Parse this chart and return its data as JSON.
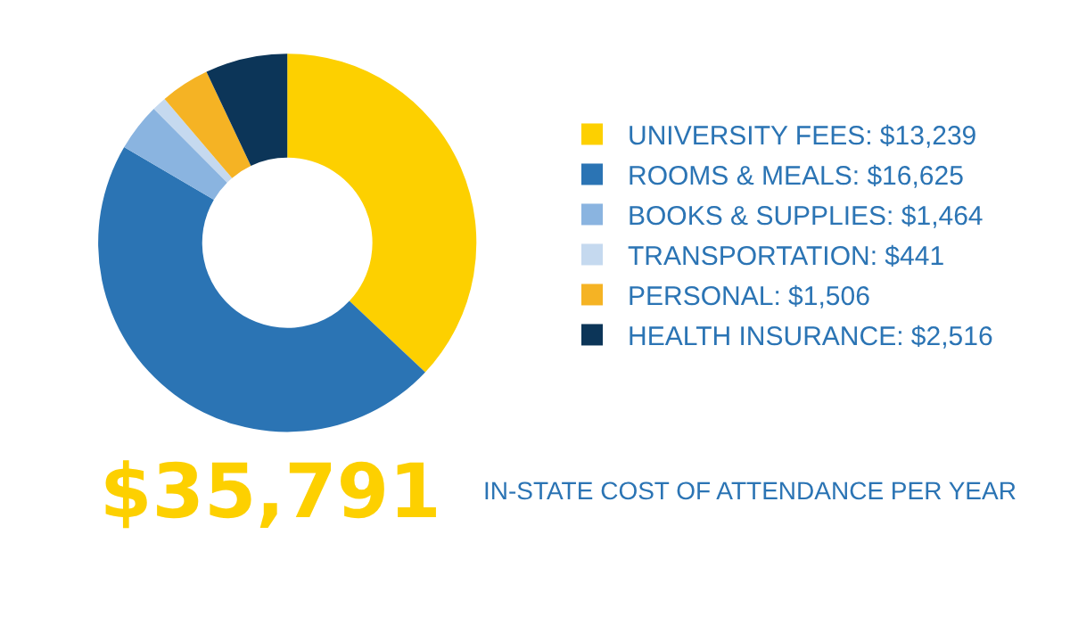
{
  "chart_data": {
    "type": "donut",
    "categories": [
      "UNIVERSITY FEES: $13,239",
      "ROOMS & MEALS: $16,625",
      "BOOKS & SUPPLIES: $1,464",
      "TRANSPORTATION: $441",
      "PERSONAL: $1,506",
      "HEALTH INSURANCE: $2,516"
    ],
    "values": [
      13239,
      16625,
      1464,
      441,
      1506,
      2516
    ],
    "colors": [
      "#fdd000",
      "#2b74b4",
      "#8ab4e0",
      "#c5d9ef",
      "#f5b324",
      "#0c3558"
    ],
    "legend": "right",
    "annotations": [
      "$35,791",
      "IN-STATE COST OF ATTENDANCE PER YEAR"
    ]
  }
}
